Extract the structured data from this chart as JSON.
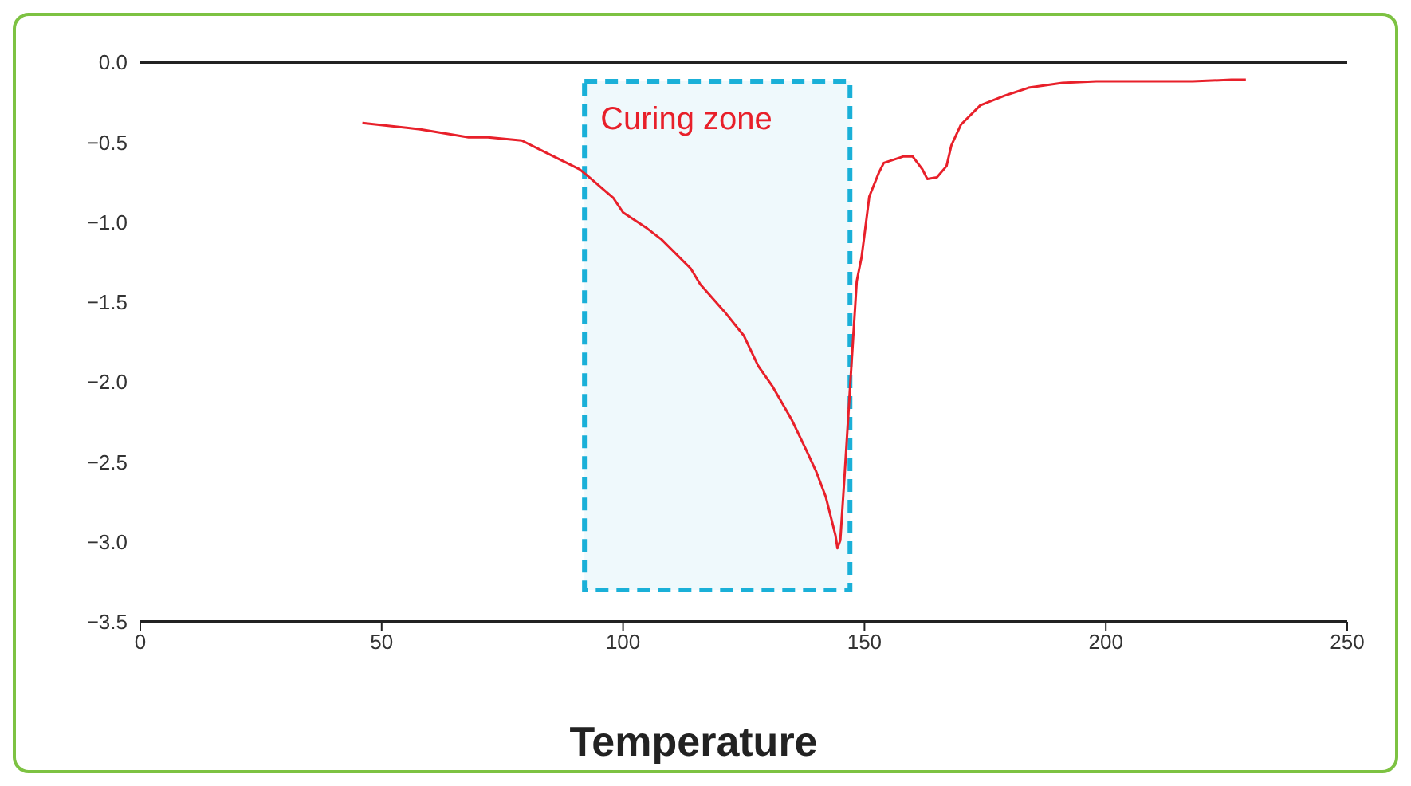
{
  "chart_data": {
    "type": "line",
    "xlabel": "Temperature",
    "x": [
      46,
      58,
      68,
      72,
      79,
      85,
      91,
      93,
      98,
      100,
      105,
      108,
      114,
      116,
      121,
      125,
      128,
      131,
      135,
      138,
      140,
      142,
      144,
      144.4,
      145,
      146,
      147,
      148.4,
      149.4,
      150,
      151,
      153,
      154,
      158,
      160,
      162,
      163,
      165,
      167,
      168,
      170,
      174,
      179,
      184,
      191,
      198,
      218,
      226,
      229
    ],
    "series": [
      {
        "color": "#e8202a",
        "values": [
          -0.38,
          -0.42,
          -0.47,
          -0.47,
          -0.49,
          -0.58,
          -0.67,
          -0.72,
          -0.85,
          -0.94,
          -1.04,
          -1.11,
          -1.29,
          -1.39,
          -1.56,
          -1.71,
          -1.9,
          -2.03,
          -2.24,
          -2.43,
          -2.56,
          -2.72,
          -2.96,
          -3.04,
          -2.99,
          -2.53,
          -2.04,
          -1.37,
          -1.22,
          -1.08,
          -0.84,
          -0.69,
          -0.63,
          -0.59,
          -0.59,
          -0.67,
          -0.73,
          -0.72,
          -0.65,
          -0.52,
          -0.39,
          -0.27,
          -0.21,
          -0.16,
          -0.13,
          -0.12,
          -0.12,
          -0.11,
          -0.11
        ]
      }
    ],
    "xlim": [
      0,
      250
    ],
    "xticks": [
      0,
      50,
      100,
      150,
      200,
      250
    ],
    "ylim": [
      -3.5,
      0
    ],
    "yticks": [
      {
        "value": 0,
        "label": "0.0"
      },
      {
        "value": -0.5,
        "label": "−0.5"
      },
      {
        "value": -1,
        "label": "−1.0"
      },
      {
        "value": -1.5,
        "label": "−1.5"
      },
      {
        "value": -2,
        "label": "−2.0"
      },
      {
        "value": -2.5,
        "label": "−2.5"
      },
      {
        "value": -3,
        "label": "−3.0"
      },
      {
        "value": -3.5,
        "label": "−3.5"
      }
    ],
    "bands": [
      {
        "axis": "x",
        "from": 92,
        "to": 147,
        "label": "Curing zone",
        "color": "#1ab0d8"
      }
    ],
    "grid": false,
    "legend": false,
    "marker": "none",
    "line_style": "solid"
  }
}
